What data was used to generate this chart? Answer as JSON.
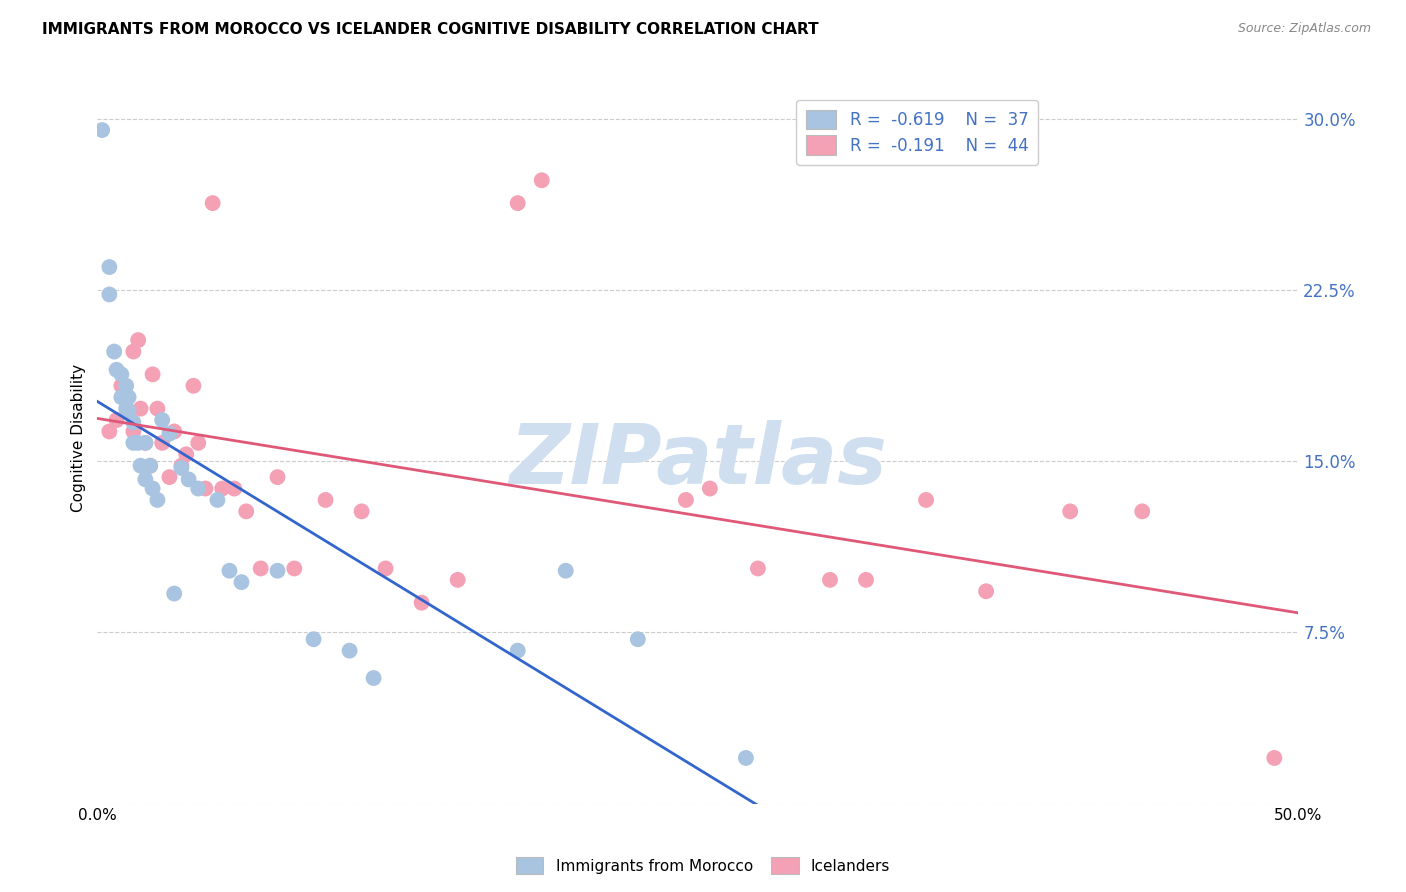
{
  "title": "IMMIGRANTS FROM MOROCCO VS ICELANDER COGNITIVE DISABILITY CORRELATION CHART",
  "source": "Source: ZipAtlas.com",
  "ylabel": "Cognitive Disability",
  "xlim": [
    0.0,
    0.5
  ],
  "ylim": [
    0.0,
    0.32
  ],
  "yticks": [
    0.0,
    0.075,
    0.15,
    0.225,
    0.3
  ],
  "ytick_labels": [
    "",
    "7.5%",
    "15.0%",
    "22.5%",
    "30.0%"
  ],
  "xtick_vals": [
    0.0,
    0.5
  ],
  "xtick_labels": [
    "0.0%",
    "50.0%"
  ],
  "legend_r1": "-0.619",
  "legend_n1": "37",
  "legend_r2": "-0.191",
  "legend_n2": "44",
  "morocco_color": "#a8c4e0",
  "iceland_color": "#f4a0b5",
  "morocco_line_color": "#3366cc",
  "iceland_line_color": "#e05878",
  "morocco_points_x": [
    0.002,
    0.005,
    0.005,
    0.007,
    0.008,
    0.01,
    0.01,
    0.012,
    0.012,
    0.013,
    0.013,
    0.015,
    0.015,
    0.017,
    0.018,
    0.02,
    0.02,
    0.022,
    0.023,
    0.025,
    0.027,
    0.03,
    0.032,
    0.035,
    0.038,
    0.042,
    0.05,
    0.055,
    0.06,
    0.075,
    0.09,
    0.105,
    0.115,
    0.175,
    0.195,
    0.225,
    0.27
  ],
  "morocco_points_y": [
    0.295,
    0.235,
    0.223,
    0.198,
    0.19,
    0.188,
    0.178,
    0.183,
    0.173,
    0.178,
    0.172,
    0.167,
    0.158,
    0.158,
    0.148,
    0.158,
    0.142,
    0.148,
    0.138,
    0.133,
    0.168,
    0.162,
    0.092,
    0.147,
    0.142,
    0.138,
    0.133,
    0.102,
    0.097,
    0.102,
    0.072,
    0.067,
    0.055,
    0.067,
    0.102,
    0.072,
    0.02
  ],
  "iceland_points_x": [
    0.005,
    0.008,
    0.01,
    0.012,
    0.015,
    0.015,
    0.017,
    0.018,
    0.02,
    0.022,
    0.023,
    0.025,
    0.027,
    0.03,
    0.032,
    0.035,
    0.037,
    0.04,
    0.042,
    0.045,
    0.048,
    0.052,
    0.057,
    0.062,
    0.068,
    0.075,
    0.082,
    0.095,
    0.11,
    0.12,
    0.135,
    0.15,
    0.175,
    0.185,
    0.245,
    0.255,
    0.275,
    0.305,
    0.32,
    0.345,
    0.37,
    0.405,
    0.435,
    0.49
  ],
  "iceland_points_y": [
    0.163,
    0.168,
    0.183,
    0.178,
    0.163,
    0.198,
    0.203,
    0.173,
    0.158,
    0.148,
    0.188,
    0.173,
    0.158,
    0.143,
    0.163,
    0.148,
    0.153,
    0.183,
    0.158,
    0.138,
    0.263,
    0.138,
    0.138,
    0.128,
    0.103,
    0.143,
    0.103,
    0.133,
    0.128,
    0.103,
    0.088,
    0.098,
    0.263,
    0.273,
    0.133,
    0.138,
    0.103,
    0.098,
    0.098,
    0.133,
    0.093,
    0.128,
    0.128,
    0.02
  ],
  "watermark": "ZIPatlas",
  "watermark_color": "#d0dff0",
  "background_color": "#ffffff",
  "grid_color": "#cccccc",
  "ytick_color": "#4472c4",
  "legend_text_color": "#222222",
  "legend_value_color": "#4472c4"
}
